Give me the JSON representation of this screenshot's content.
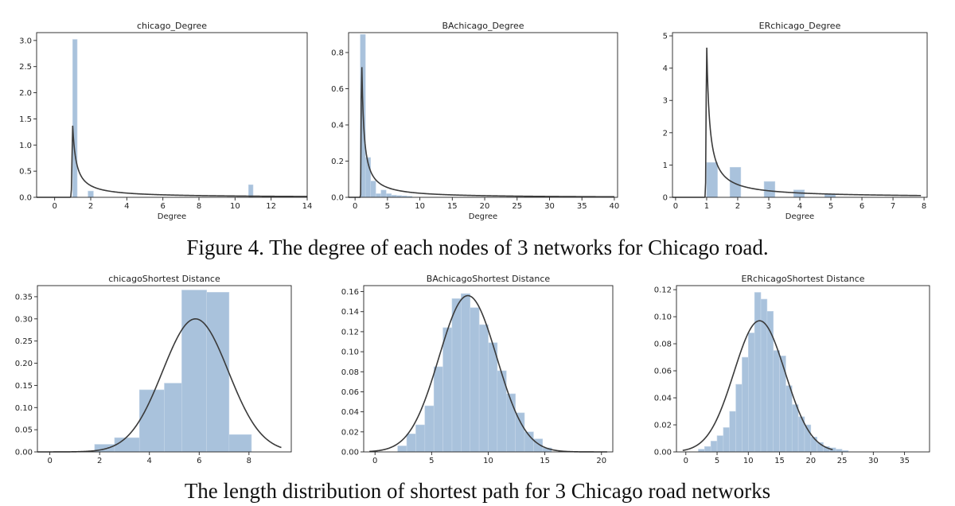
{
  "captions": {
    "degree": "Figure 4. The degree of each nodes of 3 networks for Chicago road.",
    "shortest": "The length distribution of shortest path for 3 Chicago road networks"
  },
  "chart_data": [
    {
      "type": "bar",
      "title": "chicago_Degree",
      "xlabel": "Degree",
      "ylabel": "",
      "xlim": [
        -1,
        14
      ],
      "ylim": [
        0,
        3.15
      ],
      "xticks": [
        0,
        2,
        4,
        6,
        8,
        10,
        12,
        14
      ],
      "yticks": [
        0.0,
        0.5,
        1.0,
        1.5,
        2.0,
        2.5,
        3.0
      ],
      "ytick_decimals": 1,
      "hist_bins": [
        {
          "x0": 1.0,
          "x1": 1.25,
          "y": 3.02
        },
        {
          "x0": 1.85,
          "x1": 2.15,
          "y": 0.12
        },
        {
          "x0": 10.75,
          "x1": 11.0,
          "y": 0.24
        }
      ],
      "kde": {
        "kind": "skew",
        "peak_x": 1.0,
        "peak_y": 1.37,
        "decay": 0.4,
        "xmin": -1,
        "xmax": 14
      },
      "grid": false,
      "legend": "none"
    },
    {
      "type": "bar",
      "title": "BAchicago_Degree",
      "xlabel": "Degree",
      "ylabel": "",
      "xlim": [
        -1,
        40.5
      ],
      "ylim": [
        0,
        0.91
      ],
      "xticks": [
        0,
        5,
        10,
        15,
        20,
        25,
        30,
        35,
        40
      ],
      "yticks": [
        0.0,
        0.2,
        0.4,
        0.6,
        0.8
      ],
      "ytick_decimals": 1,
      "hist_bins": [
        {
          "x0": 0.8,
          "x1": 1.6,
          "y": 0.9
        },
        {
          "x0": 1.6,
          "x1": 2.4,
          "y": 0.22
        },
        {
          "x0": 2.4,
          "x1": 3.2,
          "y": 0.09
        },
        {
          "x0": 3.2,
          "x1": 4.0,
          "y": 0.02
        },
        {
          "x0": 4.0,
          "x1": 4.8,
          "y": 0.04
        },
        {
          "x0": 4.8,
          "x1": 5.6,
          "y": 0.02
        },
        {
          "x0": 5.6,
          "x1": 6.4,
          "y": 0.012
        },
        {
          "x0": 6.4,
          "x1": 7.2,
          "y": 0.01
        },
        {
          "x0": 7.2,
          "x1": 8.0,
          "y": 0.008
        },
        {
          "x0": 8.0,
          "x1": 8.8,
          "y": 0.006
        }
      ],
      "kde": {
        "kind": "skew",
        "peak_x": 1.0,
        "peak_y": 0.84,
        "decay": 0.6,
        "xmin": -1,
        "xmax": 40
      },
      "grid": false,
      "legend": "none"
    },
    {
      "type": "bar",
      "title": "ERchicago_Degree",
      "xlabel": "Degree",
      "ylabel": "",
      "xlim": [
        -0.1,
        8.1
      ],
      "ylim": [
        0,
        5.1
      ],
      "xticks": [
        0,
        1,
        2,
        3,
        4,
        5,
        6,
        7,
        8
      ],
      "yticks": [
        0,
        1,
        2,
        3,
        4,
        5
      ],
      "ytick_decimals": 0,
      "hist_bins": [
        {
          "x0": 1.0,
          "x1": 1.35,
          "y": 1.08
        },
        {
          "x0": 1.75,
          "x1": 2.1,
          "y": 0.93
        },
        {
          "x0": 2.85,
          "x1": 3.2,
          "y": 0.49
        },
        {
          "x0": 3.8,
          "x1": 4.15,
          "y": 0.23
        },
        {
          "x0": 4.8,
          "x1": 5.15,
          "y": 0.09
        }
      ],
      "kde": {
        "kind": "skew",
        "peak_x": 1.0,
        "peak_y": 4.88,
        "decay": 0.18,
        "xmin": -0.1,
        "xmax": 7.9
      },
      "grid": false,
      "legend": "none"
    },
    {
      "type": "bar",
      "title": "chicagoShortest Distance",
      "xlabel": "",
      "ylabel": "",
      "xlim": [
        -0.5,
        9.7
      ],
      "ylim": [
        0,
        0.375
      ],
      "xticks": [
        0,
        2,
        4,
        6,
        8
      ],
      "yticks": [
        0.0,
        0.05,
        0.1,
        0.15,
        0.2,
        0.25,
        0.3,
        0.35
      ],
      "ytick_decimals": 2,
      "hist_bins": [
        {
          "x0": 1.8,
          "x1": 2.6,
          "y": 0.017
        },
        {
          "x0": 2.6,
          "x1": 3.6,
          "y": 0.032
        },
        {
          "x0": 3.6,
          "x1": 4.6,
          "y": 0.14
        },
        {
          "x0": 4.6,
          "x1": 5.3,
          "y": 0.155
        },
        {
          "x0": 5.3,
          "x1": 6.3,
          "y": 0.365
        },
        {
          "x0": 6.3,
          "x1": 7.2,
          "y": 0.36
        },
        {
          "x0": 7.2,
          "x1": 8.1,
          "y": 0.039
        }
      ],
      "kde": {
        "kind": "normal",
        "mean": 5.85,
        "sd": 1.32,
        "peak_y": 0.3,
        "xmin": -0.5,
        "xmax": 9.3
      },
      "grid": false,
      "legend": "none"
    },
    {
      "type": "bar",
      "title": "BAchicagoShortest Distance",
      "xlabel": "",
      "ylabel": "",
      "xlim": [
        -1,
        21
      ],
      "ylim": [
        0,
        0.166
      ],
      "xticks": [
        0,
        5,
        10,
        15,
        20
      ],
      "yticks": [
        0.0,
        0.02,
        0.04,
        0.06,
        0.08,
        0.1,
        0.12,
        0.14,
        0.16
      ],
      "ytick_decimals": 2,
      "hist_bins": [
        {
          "x0": 2.0,
          "x1": 2.8,
          "y": 0.006
        },
        {
          "x0": 2.8,
          "x1": 3.6,
          "y": 0.018
        },
        {
          "x0": 3.6,
          "x1": 4.4,
          "y": 0.027
        },
        {
          "x0": 4.4,
          "x1": 5.2,
          "y": 0.046
        },
        {
          "x0": 5.2,
          "x1": 6.0,
          "y": 0.085
        },
        {
          "x0": 6.0,
          "x1": 6.8,
          "y": 0.124
        },
        {
          "x0": 6.8,
          "x1": 7.6,
          "y": 0.153
        },
        {
          "x0": 7.6,
          "x1": 8.4,
          "y": 0.158
        },
        {
          "x0": 8.4,
          "x1": 9.2,
          "y": 0.144
        },
        {
          "x0": 9.2,
          "x1": 10.0,
          "y": 0.127
        },
        {
          "x0": 10.0,
          "x1": 10.8,
          "y": 0.109
        },
        {
          "x0": 10.8,
          "x1": 11.6,
          "y": 0.081
        },
        {
          "x0": 11.6,
          "x1": 12.4,
          "y": 0.058
        },
        {
          "x0": 12.4,
          "x1": 13.2,
          "y": 0.039
        },
        {
          "x0": 13.2,
          "x1": 14.0,
          "y": 0.02
        },
        {
          "x0": 14.0,
          "x1": 14.8,
          "y": 0.013
        },
        {
          "x0": 14.8,
          "x1": 15.6,
          "y": 0.004
        }
      ],
      "kde": {
        "kind": "normal",
        "mean": 8.2,
        "sd": 2.55,
        "peak_y": 0.156,
        "xmin": -0.5,
        "xmax": 20.5
      },
      "grid": false,
      "legend": "none"
    },
    {
      "type": "bar",
      "title": "ERchicagoShortest Distance",
      "xlabel": "",
      "ylabel": "",
      "xlim": [
        -1.5,
        39
      ],
      "ylim": [
        0,
        0.123
      ],
      "xticks": [
        0,
        5,
        10,
        15,
        20,
        25,
        30,
        35
      ],
      "yticks": [
        0.0,
        0.02,
        0.04,
        0.06,
        0.08,
        0.1,
        0.12
      ],
      "ytick_decimals": 2,
      "hist_bins": [
        {
          "x0": 2.0,
          "x1": 3.0,
          "y": 0.002
        },
        {
          "x0": 3.0,
          "x1": 4.0,
          "y": 0.004
        },
        {
          "x0": 4.0,
          "x1": 5.0,
          "y": 0.008
        },
        {
          "x0": 5.0,
          "x1": 6.0,
          "y": 0.012
        },
        {
          "x0": 6.0,
          "x1": 7.0,
          "y": 0.018
        },
        {
          "x0": 7.0,
          "x1": 8.0,
          "y": 0.03
        },
        {
          "x0": 8.0,
          "x1": 9.0,
          "y": 0.05
        },
        {
          "x0": 9.0,
          "x1": 10.0,
          "y": 0.07
        },
        {
          "x0": 10.0,
          "x1": 11.0,
          "y": 0.088
        },
        {
          "x0": 11.0,
          "x1": 12.0,
          "y": 0.118
        },
        {
          "x0": 12.0,
          "x1": 13.0,
          "y": 0.113
        },
        {
          "x0": 13.0,
          "x1": 14.0,
          "y": 0.104
        },
        {
          "x0": 14.0,
          "x1": 15.0,
          "y": 0.075
        },
        {
          "x0": 15.0,
          "x1": 16.0,
          "y": 0.071
        },
        {
          "x0": 16.0,
          "x1": 17.0,
          "y": 0.049
        },
        {
          "x0": 17.0,
          "x1": 18.0,
          "y": 0.035
        },
        {
          "x0": 18.0,
          "x1": 19.0,
          "y": 0.026
        },
        {
          "x0": 19.0,
          "x1": 20.0,
          "y": 0.02
        },
        {
          "x0": 20.0,
          "x1": 21.0,
          "y": 0.011
        },
        {
          "x0": 21.0,
          "x1": 22.0,
          "y": 0.007
        },
        {
          "x0": 22.0,
          "x1": 23.0,
          "y": 0.004
        },
        {
          "x0": 23.0,
          "x1": 24.0,
          "y": 0.003
        },
        {
          "x0": 24.0,
          "x1": 25.0,
          "y": 0.002
        },
        {
          "x0": 25.0,
          "x1": 26.0,
          "y": 0.001
        }
      ],
      "kde": {
        "kind": "normal",
        "mean": 11.8,
        "sd": 4.1,
        "peak_y": 0.097,
        "xmin": -0.5,
        "xmax": 23.5
      },
      "grid": false,
      "legend": "none"
    }
  ],
  "colors": {
    "bar_fill": "#a9c2dc",
    "bar_edge": "#c5d6e8",
    "kde_line": "#3a3a3a",
    "axis": "#222222",
    "text": "#222222"
  }
}
